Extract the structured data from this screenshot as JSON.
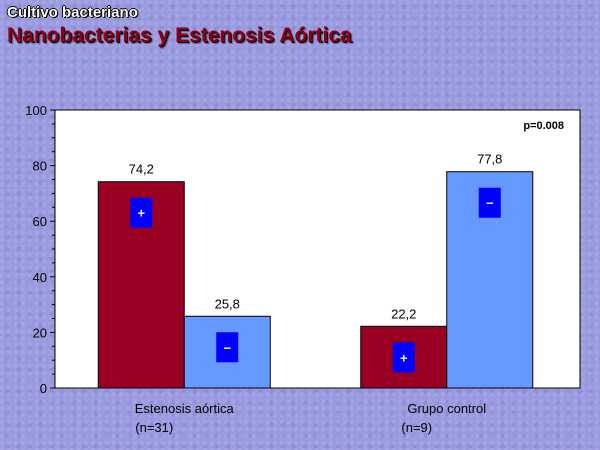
{
  "header": {
    "subtitle": "Cultivo bacteriano",
    "title": "Nanobacterias y Estenosis Aórtica"
  },
  "chart_data": {
    "type": "bar",
    "categories": [
      {
        "line1": "Estenosis aórtica",
        "line2": "(n=31)"
      },
      {
        "line1": "Grupo control",
        "line2": "(n=9)"
      }
    ],
    "series": [
      {
        "sign": "+",
        "values": [
          74.2,
          22.2
        ],
        "labels": [
          "74,2",
          "22,2"
        ]
      },
      {
        "sign": "−",
        "values": [
          25.8,
          77.8
        ],
        "labels": [
          "25,8",
          "77,8"
        ]
      }
    ],
    "ylim": [
      0,
      100
    ],
    "yticks": [
      0,
      20,
      40,
      60,
      80,
      100
    ],
    "annotation": "p=0.008",
    "grid": false,
    "colors": {
      "plus": "#990022",
      "minus": "#6699ff",
      "badge": "#0000ff",
      "plot_bg": "#ffffff"
    }
  }
}
